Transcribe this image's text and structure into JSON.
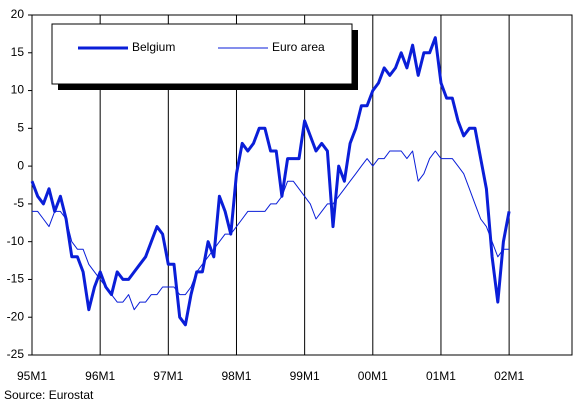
{
  "chart_data": {
    "type": "line",
    "categories": [
      "95M1",
      null,
      null,
      null,
      null,
      null,
      null,
      null,
      null,
      null,
      null,
      null,
      "96M1",
      null,
      null,
      null,
      null,
      null,
      null,
      null,
      null,
      null,
      null,
      null,
      "97M1",
      null,
      null,
      null,
      null,
      null,
      null,
      null,
      null,
      null,
      null,
      null,
      "98M1",
      null,
      null,
      null,
      null,
      null,
      null,
      null,
      null,
      null,
      null,
      null,
      "99M1",
      null,
      null,
      null,
      null,
      null,
      null,
      null,
      null,
      null,
      null,
      null,
      "00M1",
      null,
      null,
      null,
      null,
      null,
      null,
      null,
      null,
      null,
      null,
      null,
      "01M1",
      null,
      null,
      null,
      null,
      null,
      null,
      null,
      null,
      null,
      null,
      null,
      "02M1"
    ],
    "series": [
      {
        "name": "Belgium",
        "color": "#0a1ed8",
        "width": 3,
        "values": [
          -2,
          -4,
          -5,
          -3,
          -6,
          -4,
          -7,
          -12,
          -12,
          -14,
          -19,
          -16,
          -14,
          -16,
          -17,
          -14,
          -15,
          -15,
          -14,
          -13,
          -12,
          -10,
          -8,
          -9,
          -13,
          -13,
          -20,
          -21,
          -17,
          -14,
          -14,
          -10,
          -12,
          -4,
          -6,
          -9,
          -1,
          3,
          2,
          3,
          5,
          5,
          2,
          2,
          -4,
          1,
          1,
          1,
          6,
          4,
          2,
          3,
          2,
          -8,
          0,
          -2,
          3,
          5,
          8,
          8,
          10,
          11,
          13,
          12,
          13,
          15,
          13,
          16,
          12,
          15,
          15,
          17,
          11,
          9,
          9,
          6,
          4,
          5,
          5,
          1,
          -3,
          -12,
          -18,
          -10,
          -6
        ]
      },
      {
        "name": "Euro area",
        "color": "#0a1ed8",
        "width": 1,
        "values": [
          -6,
          -6,
          -7,
          -8,
          -6,
          -6,
          -7,
          -10,
          -11,
          -11,
          -13,
          -14,
          -15,
          -16,
          -17,
          -18,
          -18,
          -17,
          -19,
          -18,
          -18,
          -17,
          -17,
          -16,
          -16,
          -16,
          -17,
          -17,
          -16,
          -14,
          -13,
          -12,
          -11,
          -10,
          -9,
          -9,
          -8,
          -7,
          -6,
          -6,
          -6,
          -6,
          -5,
          -5,
          -4,
          -2,
          -2,
          -3,
          -4,
          -5,
          -7,
          -6,
          -5,
          -5,
          -4,
          -3,
          -2,
          -1,
          0,
          1,
          0,
          1,
          1,
          2,
          2,
          2,
          1,
          2,
          -2,
          -1,
          1,
          2,
          1,
          1,
          1,
          0,
          -1,
          -3,
          -5,
          -7,
          -8,
          -10,
          -12,
          -11,
          -11
        ]
      }
    ],
    "ylim": [
      -25,
      20
    ],
    "yticks": [
      -25,
      -20,
      -15,
      -10,
      -5,
      0,
      5,
      10,
      15,
      20
    ],
    "grid": true,
    "legend": "top-left",
    "source": "Source: Eurostat"
  }
}
